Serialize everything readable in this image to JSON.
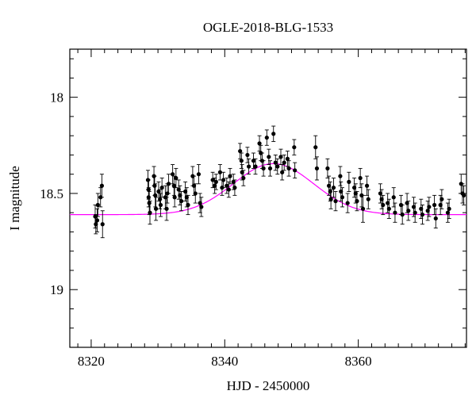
{
  "chart_data": {
    "type": "scatter",
    "title": "OGLE-2018-BLG-1533",
    "xlabel": "HJD - 2450000",
    "ylabel": "I magnitude",
    "xlim": [
      8316.8,
      8376.2
    ],
    "ylim": [
      19.3,
      17.75
    ],
    "y_inverted": true,
    "xticks": [
      8320,
      8340,
      8360
    ],
    "yticks": [
      18,
      18.5,
      19
    ],
    "ytick_labels": [
      "18",
      "18.5",
      "19"
    ],
    "grid": false,
    "legend": "none",
    "colors": {
      "points": "#000000",
      "model": "#ff00ff",
      "frame": "#000000"
    },
    "series": [
      {
        "type": "scatter_errorbar",
        "points": [
          [
            8320.6,
            18.62,
            0.06
          ],
          [
            8320.7,
            18.66,
            0.05
          ],
          [
            8320.9,
            18.64,
            0.06
          ],
          [
            8321.0,
            18.56,
            0.06
          ],
          [
            8321.4,
            18.52,
            0.05
          ],
          [
            8321.6,
            18.46,
            0.06
          ],
          [
            8321.7,
            18.66,
            0.07
          ],
          [
            8328.5,
            18.43,
            0.05
          ],
          [
            8328.6,
            18.48,
            0.05
          ],
          [
            8328.6,
            18.52,
            0.05
          ],
          [
            8328.7,
            18.55,
            0.06
          ],
          [
            8328.8,
            18.6,
            0.06
          ],
          [
            8329.4,
            18.41,
            0.05
          ],
          [
            8329.5,
            18.46,
            0.05
          ],
          [
            8329.6,
            18.51,
            0.06
          ],
          [
            8329.7,
            18.58,
            0.06
          ],
          [
            8330.1,
            18.49,
            0.05
          ],
          [
            8330.3,
            18.53,
            0.05
          ],
          [
            8330.4,
            18.56,
            0.06
          ],
          [
            8330.6,
            18.47,
            0.05
          ],
          [
            8331.1,
            18.52,
            0.06
          ],
          [
            8331.3,
            18.58,
            0.06
          ],
          [
            8331.4,
            18.5,
            0.05
          ],
          [
            8331.6,
            18.45,
            0.05
          ],
          [
            8332.2,
            18.4,
            0.05
          ],
          [
            8332.4,
            18.46,
            0.05
          ],
          [
            8332.5,
            18.52,
            0.05
          ],
          [
            8332.7,
            18.42,
            0.05
          ],
          [
            8333.1,
            18.48,
            0.05
          ],
          [
            8333.3,
            18.51,
            0.05
          ],
          [
            8333.5,
            18.54,
            0.05
          ],
          [
            8334.1,
            18.49,
            0.05
          ],
          [
            8334.3,
            18.52,
            0.05
          ],
          [
            8334.5,
            18.56,
            0.05
          ],
          [
            8335.2,
            18.41,
            0.05
          ],
          [
            8335.4,
            18.46,
            0.05
          ],
          [
            8335.6,
            18.5,
            0.05
          ],
          [
            8336.1,
            18.4,
            0.05
          ],
          [
            8336.3,
            18.55,
            0.05
          ],
          [
            8336.5,
            18.57,
            0.05
          ],
          [
            8338.2,
            18.43,
            0.04
          ],
          [
            8338.5,
            18.46,
            0.04
          ],
          [
            8338.7,
            18.44,
            0.04
          ],
          [
            8339.3,
            18.39,
            0.04
          ],
          [
            8339.6,
            18.47,
            0.04
          ],
          [
            8339.8,
            18.43,
            0.04
          ],
          [
            8340.3,
            18.46,
            0.04
          ],
          [
            8340.6,
            18.48,
            0.04
          ],
          [
            8340.8,
            18.41,
            0.04
          ],
          [
            8341.3,
            18.44,
            0.04
          ],
          [
            8341.5,
            18.47,
            0.04
          ],
          [
            8342.3,
            18.28,
            0.04
          ],
          [
            8342.5,
            18.33,
            0.04
          ],
          [
            8342.6,
            18.39,
            0.04
          ],
          [
            8342.8,
            18.42,
            0.04
          ],
          [
            8343.4,
            18.3,
            0.04
          ],
          [
            8343.6,
            18.36,
            0.04
          ],
          [
            8344.3,
            18.33,
            0.04
          ],
          [
            8344.6,
            18.36,
            0.04
          ],
          [
            8345.2,
            18.24,
            0.04
          ],
          [
            8345.4,
            18.29,
            0.04
          ],
          [
            8345.6,
            18.33,
            0.04
          ],
          [
            8345.8,
            18.37,
            0.04
          ],
          [
            8346.3,
            18.21,
            0.04
          ],
          [
            8346.6,
            18.31,
            0.04
          ],
          [
            8346.8,
            18.37,
            0.04
          ],
          [
            8347.3,
            18.19,
            0.04
          ],
          [
            8347.6,
            18.34,
            0.04
          ],
          [
            8347.9,
            18.36,
            0.04
          ],
          [
            8348.4,
            18.31,
            0.04
          ],
          [
            8348.6,
            18.39,
            0.04
          ],
          [
            8348.9,
            18.34,
            0.04
          ],
          [
            8349.4,
            18.32,
            0.04
          ],
          [
            8349.6,
            18.37,
            0.04
          ],
          [
            8350.4,
            18.26,
            0.04
          ],
          [
            8350.5,
            18.38,
            0.04
          ],
          [
            8353.6,
            18.26,
            0.06
          ],
          [
            8353.8,
            18.37,
            0.06
          ],
          [
            8355.4,
            18.37,
            0.05
          ],
          [
            8355.6,
            18.46,
            0.05
          ],
          [
            8355.8,
            18.49,
            0.05
          ],
          [
            8355.9,
            18.53,
            0.05
          ],
          [
            8356.3,
            18.47,
            0.05
          ],
          [
            8356.6,
            18.54,
            0.05
          ],
          [
            8357.3,
            18.41,
            0.05
          ],
          [
            8357.4,
            18.49,
            0.05
          ],
          [
            8357.6,
            18.52,
            0.05
          ],
          [
            8358.4,
            18.55,
            0.05
          ],
          [
            8358.6,
            18.44,
            0.05
          ],
          [
            8359.4,
            18.47,
            0.05
          ],
          [
            8359.6,
            18.5,
            0.05
          ],
          [
            8359.8,
            18.54,
            0.05
          ],
          [
            8360.3,
            18.42,
            0.05
          ],
          [
            8360.5,
            18.51,
            0.06
          ],
          [
            8360.7,
            18.58,
            0.07
          ],
          [
            8361.3,
            18.46,
            0.05
          ],
          [
            8361.5,
            18.53,
            0.05
          ],
          [
            8363.3,
            18.5,
            0.05
          ],
          [
            8363.5,
            18.53,
            0.05
          ],
          [
            8363.7,
            18.56,
            0.05
          ],
          [
            8364.4,
            18.55,
            0.05
          ],
          [
            8364.6,
            18.58,
            0.05
          ],
          [
            8365.3,
            18.52,
            0.05
          ],
          [
            8365.5,
            18.6,
            0.05
          ],
          [
            8366.4,
            18.56,
            0.05
          ],
          [
            8366.6,
            18.61,
            0.05
          ],
          [
            8367.3,
            18.55,
            0.05
          ],
          [
            8367.5,
            18.59,
            0.05
          ],
          [
            8368.3,
            18.57,
            0.05
          ],
          [
            8368.5,
            18.6,
            0.05
          ],
          [
            8369.4,
            18.58,
            0.05
          ],
          [
            8369.6,
            18.61,
            0.05
          ],
          [
            8370.4,
            18.59,
            0.05
          ],
          [
            8370.6,
            18.57,
            0.05
          ],
          [
            8371.4,
            18.56,
            0.05
          ],
          [
            8371.6,
            18.63,
            0.05
          ],
          [
            8372.3,
            18.56,
            0.05
          ],
          [
            8372.5,
            18.53,
            0.05
          ],
          [
            8373.4,
            18.6,
            0.05
          ],
          [
            8373.6,
            18.58,
            0.05
          ],
          [
            8375.4,
            18.45,
            0.05
          ],
          [
            8375.6,
            18.5,
            0.05
          ],
          [
            8375.8,
            18.51,
            0.05
          ]
        ]
      },
      {
        "type": "line",
        "model": {
          "baseline_mag": 18.61,
          "peak_time": 8347.3,
          "peak_mag": 18.345,
          "width": 6.0
        }
      }
    ]
  }
}
